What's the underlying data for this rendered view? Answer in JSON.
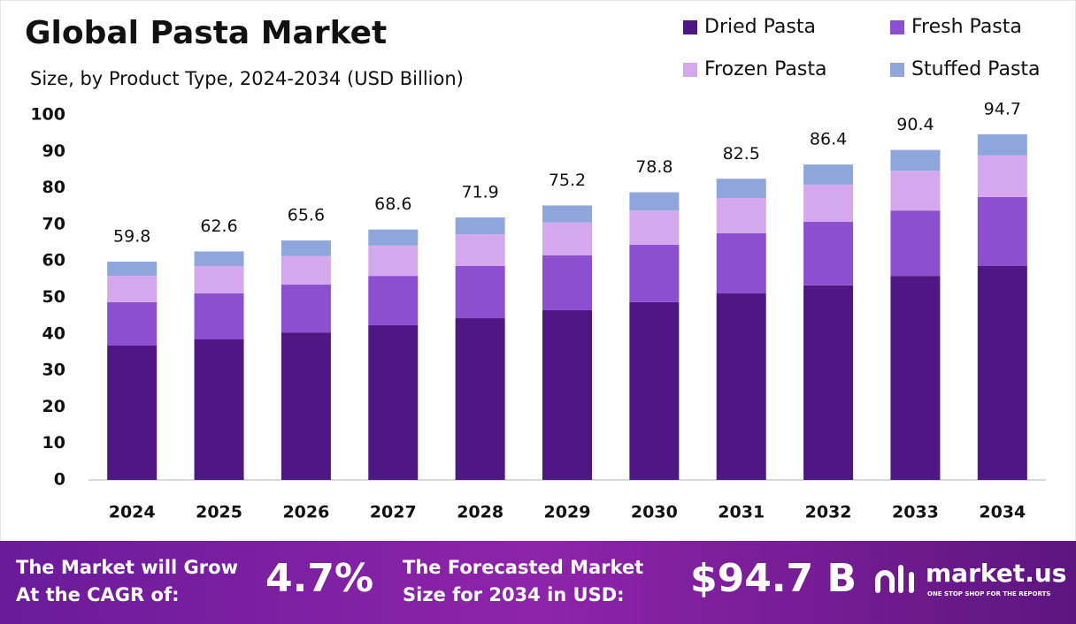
{
  "chart_data": {
    "type": "stacked_bar",
    "title": "Global Pasta Market",
    "subtitle": "Size, by Product Type, 2024-2034 (USD Billion)",
    "categories": [
      "2024",
      "2025",
      "2026",
      "2027",
      "2028",
      "2029",
      "2030",
      "2031",
      "2032",
      "2033",
      "2034"
    ],
    "series": [
      {
        "name": "Dried Pasta",
        "color": "#4e1783",
        "values": [
          36.8,
          38.5,
          40.4,
          42.4,
          44.3,
          46.5,
          48.7,
          51.1,
          53.3,
          55.9,
          58.6
        ]
      },
      {
        "name": "Fresh Pasta",
        "color": "#8b4fcf",
        "values": [
          11.9,
          12.6,
          13.1,
          13.5,
          14.3,
          15.0,
          15.7,
          16.5,
          17.4,
          17.9,
          18.9
        ]
      },
      {
        "name": "Frozen Pasta",
        "color": "#d5a8ee",
        "values": [
          7.2,
          7.5,
          7.8,
          8.3,
          8.7,
          9.0,
          9.4,
          9.6,
          10.2,
          10.9,
          11.4
        ]
      },
      {
        "name": "Stuffed Pasta",
        "color": "#8fa6dc",
        "values": [
          3.9,
          4.0,
          4.3,
          4.4,
          4.6,
          4.7,
          5.0,
          5.3,
          5.5,
          5.7,
          5.8
        ]
      }
    ],
    "totals": [
      59.8,
      62.6,
      65.6,
      68.6,
      71.9,
      75.2,
      78.8,
      82.5,
      86.4,
      90.4,
      94.7
    ],
    "ylim": [
      0,
      100
    ],
    "yticks": [
      0,
      10,
      20,
      30,
      40,
      50,
      60,
      70,
      80,
      90,
      100
    ],
    "grid": false,
    "legend": "top-right"
  },
  "footer": {
    "cagr_label": [
      "The Market will Grow",
      "At the CAGR of:"
    ],
    "cagr": "4.7%",
    "size_label": [
      "The Forecasted Market",
      "Size for 2034 in USD:"
    ],
    "size": "$94.7 B",
    "brand": "market.us",
    "tagline": "ONE STOP SHOP FOR THE REPORTS"
  }
}
